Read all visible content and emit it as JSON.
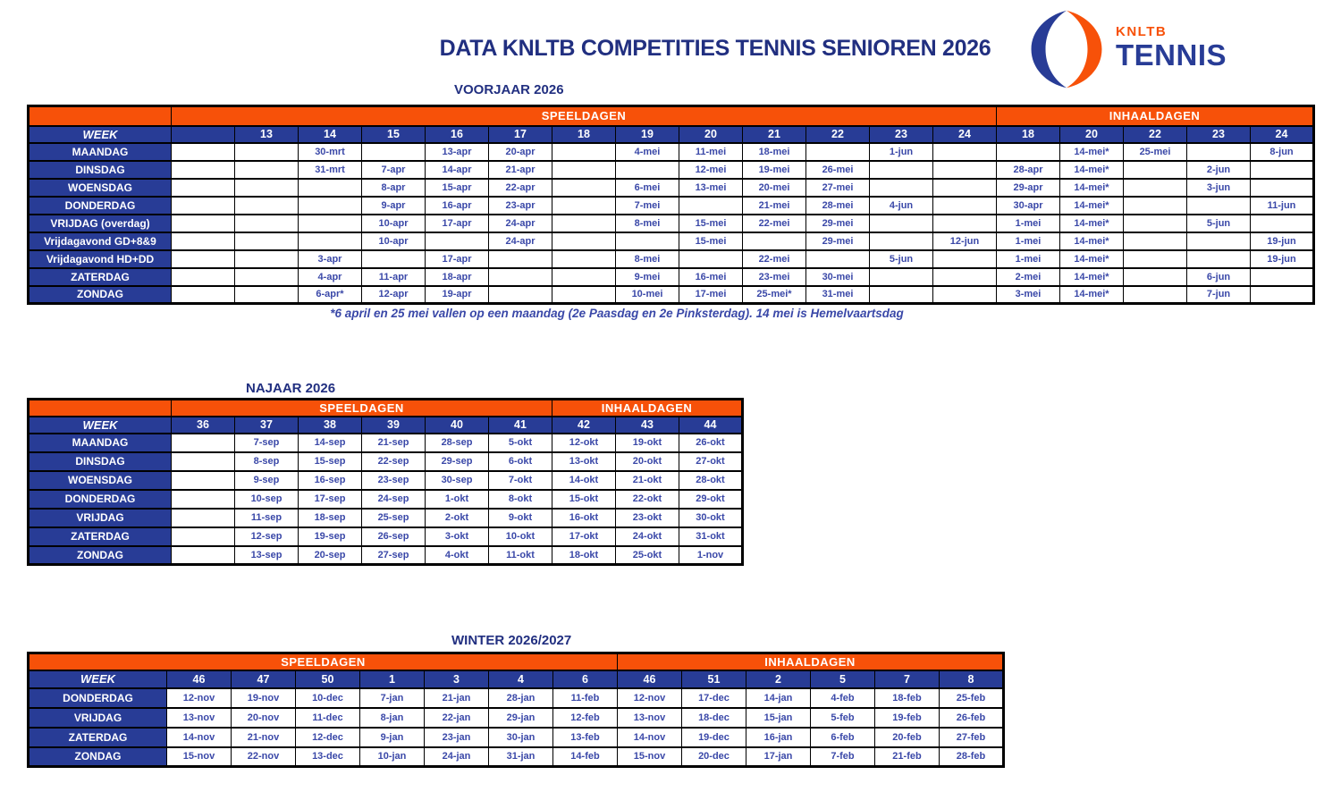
{
  "header": {
    "title": "DATA KNLTB COMPETITIES TENNIS SENIOREN 2026",
    "logo": {
      "brand": "KNLTB",
      "sport": "TENNIS"
    }
  },
  "colors": {
    "orange": "#F75109",
    "blue": "#283C96",
    "title_blue": "#212F80",
    "date_text": "#3A48A8"
  },
  "labels": {
    "speeldagen": "SPEELDAGEN",
    "inhaaldagen": "INHAALDAGEN",
    "week": "WEEK"
  },
  "footnote": "*6 april  en 25 mei vallen op een maandag (2e Paasdag en 2e Pinksterdag). 14 mei is Hemelvaartsdag",
  "tables": [
    {
      "id": "voorjaar",
      "title": "VOORJAAR 2026",
      "speeldagen_weeks": [
        "",
        "13",
        "14",
        "15",
        "16",
        "17",
        "18",
        "19",
        "20",
        "21",
        "22",
        "23",
        "24"
      ],
      "inhaaldagen_weeks": [
        "18",
        "20",
        "22",
        "23",
        "24"
      ],
      "rows": [
        {
          "day": "MAANDAG",
          "speeldagen": [
            "",
            "",
            "30-mrt",
            "",
            "13-apr",
            "20-apr",
            "",
            "4-mei",
            "11-mei",
            "18-mei",
            "",
            "1-jun",
            ""
          ],
          "inhaaldagen": [
            "",
            "14-mei*",
            "25-mei",
            "",
            ""
          ]
        },
        {
          "day": "DINSDAG",
          "speeldagen": [
            "",
            "",
            "31-mrt",
            "7-apr",
            "14-apr",
            "21-apr",
            "",
            "",
            "12-mei",
            "19-mei",
            "26-mei",
            "",
            ""
          ],
          "inhaaldagen": [
            "28-apr",
            "14-mei*",
            "",
            "2-jun",
            ""
          ]
        },
        {
          "day": "WOENSDAG",
          "speeldagen": [
            "",
            "",
            "",
            "8-apr",
            "15-apr",
            "22-apr",
            "",
            "6-mei",
            "13-mei",
            "20-mei",
            "27-mei",
            "",
            ""
          ],
          "inhaaldagen": [
            "29-apr",
            "14-mei*",
            "",
            "3-jun",
            ""
          ]
        },
        {
          "day": "DONDERDAG",
          "speeldagen": [
            "",
            "",
            "",
            "9-apr",
            "16-apr",
            "23-apr",
            "",
            "7-mei",
            "",
            "21-mei",
            "28-mei",
            "4-jun",
            ""
          ],
          "inhaaldagen": [
            "30-apr",
            "14-mei*",
            "",
            "",
            "11-jun"
          ]
        },
        {
          "day": "VRIJDAG (overdag)",
          "speeldagen": [
            "",
            "",
            "",
            "10-apr",
            "17-apr",
            "24-apr",
            "",
            "8-mei",
            "15-mei",
            "22-mei",
            "29-mei",
            "",
            ""
          ],
          "inhaaldagen": [
            "1-mei",
            "14-mei*",
            "",
            "5-jun",
            ""
          ]
        },
        {
          "day": "Vrijdagavond GD+8&9",
          "speeldagen": [
            "",
            "",
            "",
            "10-apr",
            "",
            "24-apr",
            "",
            "",
            "15-mei",
            "",
            "29-mei",
            "",
            "12-jun"
          ],
          "inhaaldagen": [
            "1-mei",
            "14-mei*",
            "",
            "",
            "19-jun"
          ]
        },
        {
          "day": "Vrijdagavond HD+DD",
          "speeldagen": [
            "",
            "",
            "3-apr",
            "",
            "17-apr",
            "",
            "",
            "8-mei",
            "",
            "22-mei",
            "",
            "5-jun",
            ""
          ],
          "inhaaldagen": [
            "1-mei",
            "14-mei*",
            "",
            "",
            "19-jun"
          ]
        },
        {
          "day": "ZATERDAG",
          "speeldagen": [
            "",
            "",
            "4-apr",
            "11-apr",
            "18-apr",
            "",
            "",
            "9-mei",
            "16-mei",
            "23-mei",
            "30-mei",
            "",
            ""
          ],
          "inhaaldagen": [
            "2-mei",
            "14-mei*",
            "",
            "6-jun",
            ""
          ]
        },
        {
          "day": "ZONDAG",
          "speeldagen": [
            "",
            "",
            "6-apr*",
            "12-apr",
            "19-apr",
            "",
            "",
            "10-mei",
            "17-mei",
            "25-mei*",
            "31-mei",
            "",
            ""
          ],
          "inhaaldagen": [
            "3-mei",
            "14-mei*",
            "",
            "7-jun",
            ""
          ]
        }
      ],
      "maandag_inhaal_fix": [
        "",
        "14-mei*",
        "25-mei",
        "",
        "8-jun"
      ]
    },
    {
      "id": "najaar",
      "title": "NAJAAR 2026",
      "speeldagen_weeks": [
        "36",
        "37",
        "38",
        "39",
        "40",
        "41"
      ],
      "inhaaldagen_weeks": [
        "42",
        "43",
        "44"
      ],
      "rows": [
        {
          "day": "MAANDAG",
          "speeldagen": [
            "",
            "7-sep",
            "14-sep",
            "21-sep",
            "28-sep",
            "5-okt"
          ],
          "inhaaldagen": [
            "12-okt",
            "19-okt",
            "26-okt"
          ]
        },
        {
          "day": "DINSDAG",
          "speeldagen": [
            "",
            "8-sep",
            "15-sep",
            "22-sep",
            "29-sep",
            "6-okt"
          ],
          "inhaaldagen": [
            "13-okt",
            "20-okt",
            "27-okt"
          ]
        },
        {
          "day": "WOENSDAG",
          "speeldagen": [
            "",
            "9-sep",
            "16-sep",
            "23-sep",
            "30-sep",
            "7-okt"
          ],
          "inhaaldagen": [
            "14-okt",
            "21-okt",
            "28-okt"
          ]
        },
        {
          "day": "DONDERDAG",
          "speeldagen": [
            "",
            "10-sep",
            "17-sep",
            "24-sep",
            "1-okt",
            "8-okt"
          ],
          "inhaaldagen": [
            "15-okt",
            "22-okt",
            "29-okt"
          ]
        },
        {
          "day": "VRIJDAG",
          "speeldagen": [
            "",
            "11-sep",
            "18-sep",
            "25-sep",
            "2-okt",
            "9-okt"
          ],
          "inhaaldagen": [
            "16-okt",
            "23-okt",
            "30-okt"
          ]
        },
        {
          "day": "ZATERDAG",
          "speeldagen": [
            "",
            "12-sep",
            "19-sep",
            "26-sep",
            "3-okt",
            "10-okt"
          ],
          "inhaaldagen": [
            "17-okt",
            "24-okt",
            "31-okt"
          ]
        },
        {
          "day": "ZONDAG",
          "speeldagen": [
            "",
            "13-sep",
            "20-sep",
            "27-sep",
            "4-okt",
            "11-okt"
          ],
          "inhaaldagen": [
            "18-okt",
            "25-okt",
            "1-nov"
          ]
        }
      ]
    },
    {
      "id": "winter",
      "title": "WINTER 2026/2027",
      "speeldagen_weeks": [
        "46",
        "47",
        "50",
        "1",
        "3",
        "4",
        "6"
      ],
      "inhaaldagen_weeks": [
        "46",
        "51",
        "2",
        "5",
        "7",
        "8"
      ],
      "rows": [
        {
          "day": "DONDERDAG",
          "speeldagen": [
            "12-nov",
            "19-nov",
            "10-dec",
            "7-jan",
            "21-jan",
            "28-jan",
            "11-feb"
          ],
          "inhaaldagen": [
            "12-nov",
            "17-dec",
            "14-jan",
            "4-feb",
            "18-feb",
            "25-feb"
          ]
        },
        {
          "day": "VRIJDAG",
          "speeldagen": [
            "13-nov",
            "20-nov",
            "11-dec",
            "8-jan",
            "22-jan",
            "29-jan",
            "12-feb"
          ],
          "inhaaldagen": [
            "13-nov",
            "18-dec",
            "15-jan",
            "5-feb",
            "19-feb",
            "26-feb"
          ]
        },
        {
          "day": "ZATERDAG",
          "speeldagen": [
            "14-nov",
            "21-nov",
            "12-dec",
            "9-jan",
            "23-jan",
            "30-jan",
            "13-feb"
          ],
          "inhaaldagen": [
            "14-nov",
            "19-dec",
            "16-jan",
            "6-feb",
            "20-feb",
            "27-feb"
          ]
        },
        {
          "day": "ZONDAG",
          "speeldagen": [
            "15-nov",
            "22-nov",
            "13-dec",
            "10-jan",
            "24-jan",
            "31-jan",
            "14-feb"
          ],
          "inhaaldagen": [
            "15-nov",
            "20-dec",
            "17-jan",
            "7-feb",
            "21-feb",
            "28-feb"
          ]
        }
      ]
    }
  ]
}
